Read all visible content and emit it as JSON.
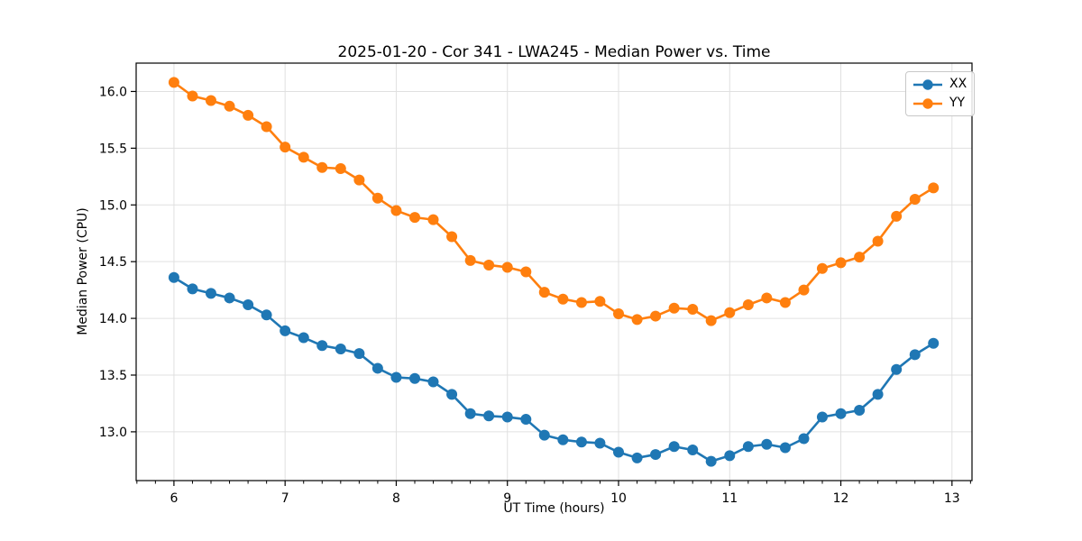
{
  "figure": {
    "title": "2025-01-20 - Cor 341 - LWA245 - Median Power vs. Time",
    "xlabel": "UT Time (hours)",
    "ylabel": "Median Power (CPU)"
  },
  "chart_data": {
    "type": "line",
    "title": "2025-01-20 - Cor 341 - LWA245 - Median Power vs. Time",
    "xlabel": "UT Time (hours)",
    "ylabel": "Median Power (CPU)",
    "xlim": [
      5.66,
      13.18
    ],
    "ylim": [
      12.57,
      16.25
    ],
    "xticks": [
      6,
      7,
      8,
      9,
      10,
      11,
      12,
      13
    ],
    "yticks": [
      13.0,
      13.5,
      14.0,
      14.5,
      15.0,
      15.5,
      16.0
    ],
    "ytick_labels": [
      "13.0",
      "13.5",
      "14.0",
      "14.5",
      "15.0",
      "15.5",
      "16.0"
    ],
    "x_minor_tick_step": 0.1666667,
    "grid": true,
    "grid_color": "#e0e0e0",
    "spine_color": "#000000",
    "legend_position": "upper right",
    "marker": "circle",
    "x": [
      6.0,
      6.167,
      6.333,
      6.5,
      6.667,
      6.833,
      7.0,
      7.167,
      7.333,
      7.5,
      7.667,
      7.833,
      8.0,
      8.167,
      8.333,
      8.5,
      8.667,
      8.833,
      9.0,
      9.167,
      9.333,
      9.5,
      9.667,
      9.833,
      10.0,
      10.167,
      10.333,
      10.5,
      10.667,
      10.833,
      11.0,
      11.167,
      11.333,
      11.5,
      11.667,
      11.833,
      12.0,
      12.167,
      12.333,
      12.5,
      12.667,
      12.833
    ],
    "series": [
      {
        "name": "XX",
        "color": "#1f77b4",
        "values": [
          14.36,
          14.26,
          14.22,
          14.18,
          14.12,
          14.03,
          13.89,
          13.83,
          13.76,
          13.73,
          13.69,
          13.56,
          13.48,
          13.47,
          13.44,
          13.33,
          13.16,
          13.14,
          13.13,
          13.11,
          12.97,
          12.93,
          12.91,
          12.9,
          12.82,
          12.77,
          12.8,
          12.87,
          12.84,
          12.74,
          12.79,
          12.87,
          12.89,
          12.86,
          12.94,
          13.13,
          13.16,
          13.19,
          13.33,
          13.55,
          13.68,
          13.78
        ]
      },
      {
        "name": "YY",
        "color": "#ff7f0e",
        "values": [
          16.08,
          15.96,
          15.92,
          15.87,
          15.79,
          15.69,
          15.51,
          15.42,
          15.33,
          15.32,
          15.22,
          15.06,
          14.95,
          14.89,
          14.87,
          14.72,
          14.51,
          14.47,
          14.45,
          14.41,
          14.23,
          14.17,
          14.14,
          14.15,
          14.04,
          13.99,
          14.02,
          14.09,
          14.08,
          13.98,
          14.05,
          14.12,
          14.18,
          14.14,
          14.25,
          14.44,
          14.49,
          14.54,
          14.68,
          14.9,
          15.05,
          15.15
        ]
      }
    ]
  }
}
